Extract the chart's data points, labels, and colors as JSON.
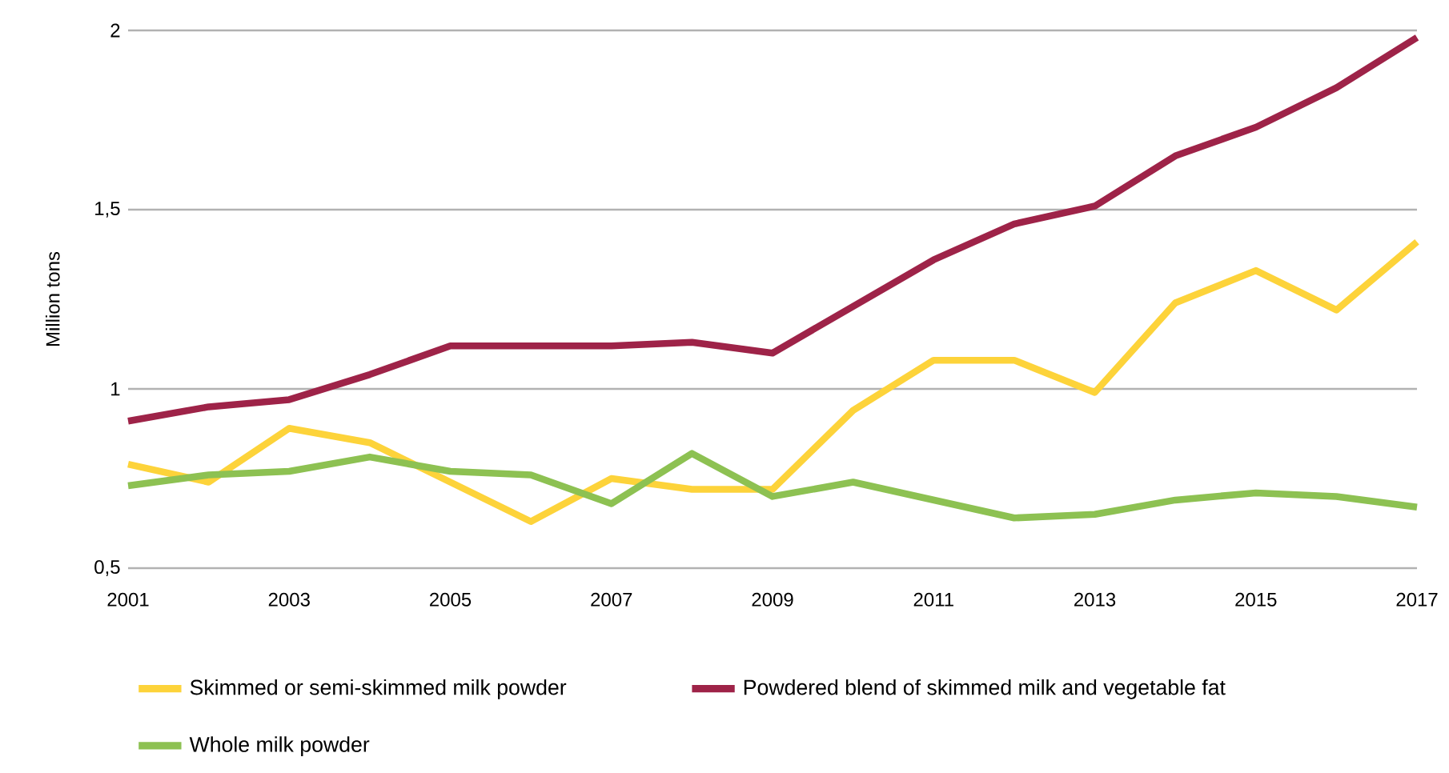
{
  "chart_data": {
    "type": "line",
    "ylabel": "Million tons",
    "x": [
      2001,
      2002,
      2003,
      2004,
      2005,
      2006,
      2007,
      2008,
      2009,
      2010,
      2011,
      2012,
      2013,
      2014,
      2015,
      2016,
      2017
    ],
    "series": [
      {
        "name": "Skimmed or semi-skimmed milk powder",
        "color": "#fdd33a",
        "values": [
          0.79,
          0.74,
          0.89,
          0.85,
          0.74,
          0.63,
          0.75,
          0.72,
          0.72,
          0.94,
          1.08,
          1.08,
          0.99,
          1.24,
          1.33,
          1.22,
          1.41
        ]
      },
      {
        "name": "Powdered blend of skimmed milk and vegetable fat",
        "color": "#9e2348",
        "values": [
          0.91,
          0.95,
          0.97,
          1.04,
          1.12,
          1.12,
          1.12,
          1.13,
          1.1,
          1.23,
          1.36,
          1.46,
          1.51,
          1.65,
          1.73,
          1.84,
          1.98
        ]
      },
      {
        "name": "Whole milk powder",
        "color": "#8dc152",
        "values": [
          0.73,
          0.76,
          0.77,
          0.81,
          0.77,
          0.76,
          0.68,
          0.82,
          0.7,
          0.74,
          0.69,
          0.64,
          0.65,
          0.69,
          0.71,
          0.7,
          0.67
        ]
      }
    ],
    "xlim": [
      2001,
      2017
    ],
    "xticks": [
      2001,
      2003,
      2005,
      2007,
      2009,
      2011,
      2013,
      2015,
      2017
    ],
    "ylim": [
      0.5,
      2
    ],
    "yticks": [
      {
        "value": 0.5,
        "label": "0,5"
      },
      1,
      {
        "value": 1.5,
        "label": "1,5"
      },
      2
    ],
    "grid": "y",
    "legend": "bottom",
    "marker": "none",
    "line_style": "solid"
  }
}
